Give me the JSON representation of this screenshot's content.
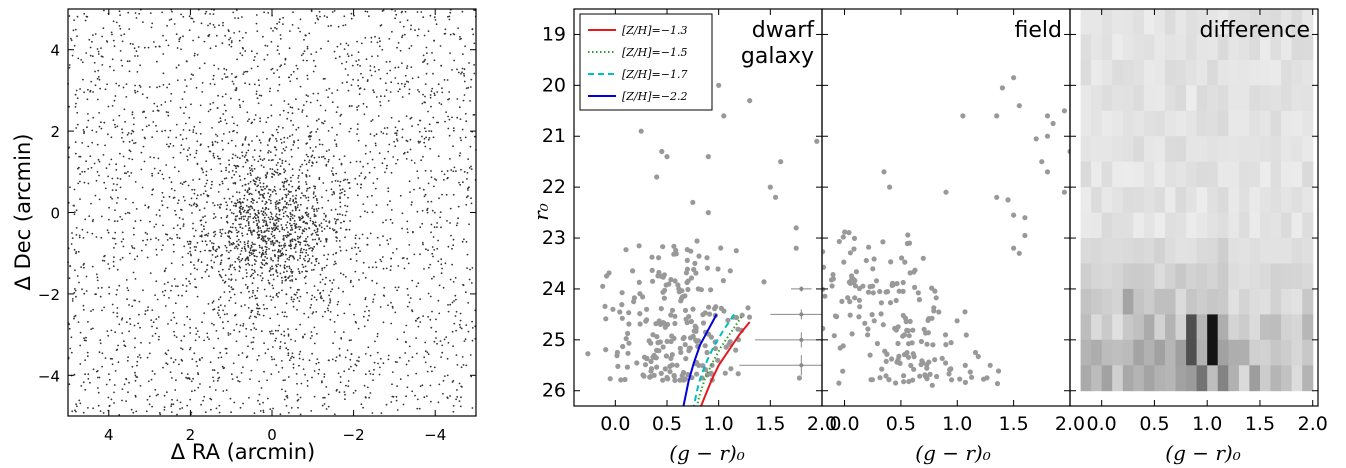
{
  "chart_data": [
    {
      "id": "sky",
      "type": "scatter",
      "xlabel": "Δ RA (arcmin)",
      "ylabel": "Δ Dec (arcmin)",
      "xlim": [
        5,
        -5
      ],
      "ylim": [
        -5,
        5
      ],
      "x_ticks": [
        4,
        2,
        0,
        -2,
        -4
      ],
      "x_tick_labels": [
        "4",
        "2",
        "0",
        "−2",
        "−4"
      ],
      "y_ticks": [
        -4,
        -2,
        0,
        2,
        4
      ],
      "y_tick_labels": [
        "−4",
        "−2",
        "0",
        "2",
        "4"
      ],
      "point_color": "#333333",
      "background_points": 2600,
      "cluster": {
        "center": [
          0,
          -0.3
        ],
        "points": 1100,
        "sigma_ra": 0.9,
        "sigma_dec": 1.1
      }
    },
    {
      "id": "dwarf",
      "type": "scatter",
      "label_lines": [
        "dwarf",
        "galaxy"
      ],
      "xlabel": "(g − r)₀",
      "ylabel": "r₀",
      "xlim": [
        -0.4,
        2.0
      ],
      "ylim": [
        26.3,
        18.5
      ],
      "x_ticks": [
        0.0,
        0.5,
        1.0,
        1.5,
        2.0
      ],
      "x_tick_labels": [
        "0.0",
        "0.5",
        "1.0",
        "1.5",
        "2.0"
      ],
      "y_ticks": [
        19,
        20,
        21,
        22,
        23,
        24,
        25,
        26
      ],
      "y_tick_labels": [
        "19",
        "20",
        "21",
        "22",
        "23",
        "24",
        "25",
        "26"
      ],
      "point_color": "#999999",
      "bright_points": [
        [
          0.25,
          20.9
        ],
        [
          1.0,
          20.0
        ],
        [
          1.3,
          20.3
        ],
        [
          1.05,
          20.6
        ],
        [
          0.45,
          21.3
        ],
        [
          0.5,
          21.4
        ],
        [
          0.9,
          21.4
        ],
        [
          1.6,
          21.5
        ],
        [
          1.95,
          21.1
        ],
        [
          0.4,
          21.8
        ],
        [
          1.5,
          22.0
        ],
        [
          1.55,
          22.2
        ],
        [
          1.75,
          22.8
        ],
        [
          1.75,
          23.2
        ],
        [
          0.75,
          22.3
        ],
        [
          0.9,
          22.5
        ]
      ],
      "cloud": {
        "points": 230,
        "seed": 7,
        "ranges": [
          [
            -0.3,
            1.3,
            23.0,
            25.8
          ]
        ]
      },
      "error_bars": [
        {
          "x": 1.8,
          "y": 24.0,
          "xerr": 0.1,
          "yerr": 0.05
        },
        {
          "x": 1.8,
          "y": 24.5,
          "xerr": 0.3,
          "yerr": 0.1
        },
        {
          "x": 1.8,
          "y": 25.0,
          "xerr": 0.45,
          "yerr": 0.15
        },
        {
          "x": 1.8,
          "y": 25.5,
          "xerr": 0.6,
          "yerr": 0.2
        }
      ],
      "series": [
        {
          "name": "[Z/H]=−1.3",
          "color": "#e41a1c",
          "dash": "",
          "points": [
            [
              1.3,
              24.65
            ],
            [
              1.2,
              24.9
            ],
            [
              1.1,
              25.2
            ],
            [
              1.0,
              25.5
            ],
            [
              0.93,
              25.8
            ],
            [
              0.87,
              26.1
            ],
            [
              0.83,
              26.3
            ]
          ]
        },
        {
          "name": "[Z/H]=−1.5",
          "color": "#2ca02c",
          "dash": "1.5,2.5",
          "points": [
            [
              1.22,
              24.55
            ],
            [
              1.12,
              24.85
            ],
            [
              1.02,
              25.15
            ],
            [
              0.94,
              25.45
            ],
            [
              0.87,
              25.75
            ],
            [
              0.82,
              26.05
            ],
            [
              0.79,
              26.3
            ]
          ]
        },
        {
          "name": "[Z/H]=−1.7",
          "color": "#00bfbf",
          "dash": "6,4",
          "points": [
            [
              1.15,
              24.5
            ],
            [
              1.05,
              24.8
            ],
            [
              0.96,
              25.1
            ],
            [
              0.89,
              25.4
            ],
            [
              0.83,
              25.7
            ],
            [
              0.79,
              26.0
            ],
            [
              0.76,
              26.3
            ]
          ]
        },
        {
          "name": "[Z/H]=−2.2",
          "color": "#0000dd",
          "dash": "",
          "points": [
            [
              0.98,
              24.5
            ],
            [
              0.9,
              24.8
            ],
            [
              0.82,
              25.1
            ],
            [
              0.76,
              25.45
            ],
            [
              0.71,
              25.8
            ],
            [
              0.68,
              26.1
            ],
            [
              0.66,
              26.3
            ]
          ]
        }
      ]
    },
    {
      "id": "field",
      "type": "scatter",
      "label_lines": [
        "field"
      ],
      "xlabel": "(g − r)₀",
      "xlim": [
        -0.2,
        2.0
      ],
      "ylim": [
        26.3,
        18.5
      ],
      "x_ticks": [
        0.0,
        0.5,
        1.0,
        1.5,
        2.0
      ],
      "x_tick_labels": [
        "0.0",
        "0.5",
        "1.0",
        "1.5",
        "2.0"
      ],
      "y_ticks": [
        19,
        20,
        21,
        22,
        23,
        24,
        25,
        26
      ],
      "point_color": "#999999",
      "bright_points": [
        [
          1.5,
          19.85
        ],
        [
          1.4,
          20.05
        ],
        [
          1.55,
          20.4
        ],
        [
          1.35,
          20.6
        ],
        [
          1.05,
          20.6
        ],
        [
          1.8,
          20.6
        ],
        [
          1.85,
          20.75
        ],
        [
          1.7,
          21.05
        ],
        [
          1.8,
          21.0
        ],
        [
          1.95,
          20.5
        ],
        [
          2.0,
          21.3
        ],
        [
          1.75,
          21.5
        ],
        [
          1.8,
          21.7
        ],
        [
          1.95,
          22.1
        ],
        [
          0.35,
          21.7
        ],
        [
          0.4,
          22.0
        ],
        [
          0.9,
          22.1
        ],
        [
          1.35,
          22.2
        ],
        [
          1.45,
          22.25
        ],
        [
          1.5,
          22.55
        ],
        [
          1.6,
          22.6
        ],
        [
          1.6,
          22.95
        ],
        [
          1.5,
          23.2
        ],
        [
          1.55,
          23.3
        ]
      ],
      "cloud": {
        "points": 200,
        "seed": 13,
        "ranges": [
          [
            -0.1,
            1.4,
            22.8,
            25.9
          ]
        ]
      }
    },
    {
      "id": "difference",
      "type": "heatmap",
      "label_lines": [
        "difference"
      ],
      "xlabel": "(g − r)₀",
      "xlim": [
        -0.3,
        2.05
      ],
      "ylim": [
        26.3,
        18.5
      ],
      "x_ticks": [
        0.0,
        0.5,
        1.0,
        1.5,
        2.0
      ],
      "x_tick_labels": [
        "0.0",
        "0.5",
        "1.0",
        "1.5",
        "2.0"
      ],
      "y_ticks": [
        19,
        20,
        21,
        22,
        23,
        24,
        25,
        26
      ],
      "grid": {
        "x0": -0.2,
        "dx": 0.1,
        "nx": 22,
        "y0": 18.5,
        "dy": 0.5,
        "ny": 15
      },
      "background_level": 0.12
    }
  ]
}
